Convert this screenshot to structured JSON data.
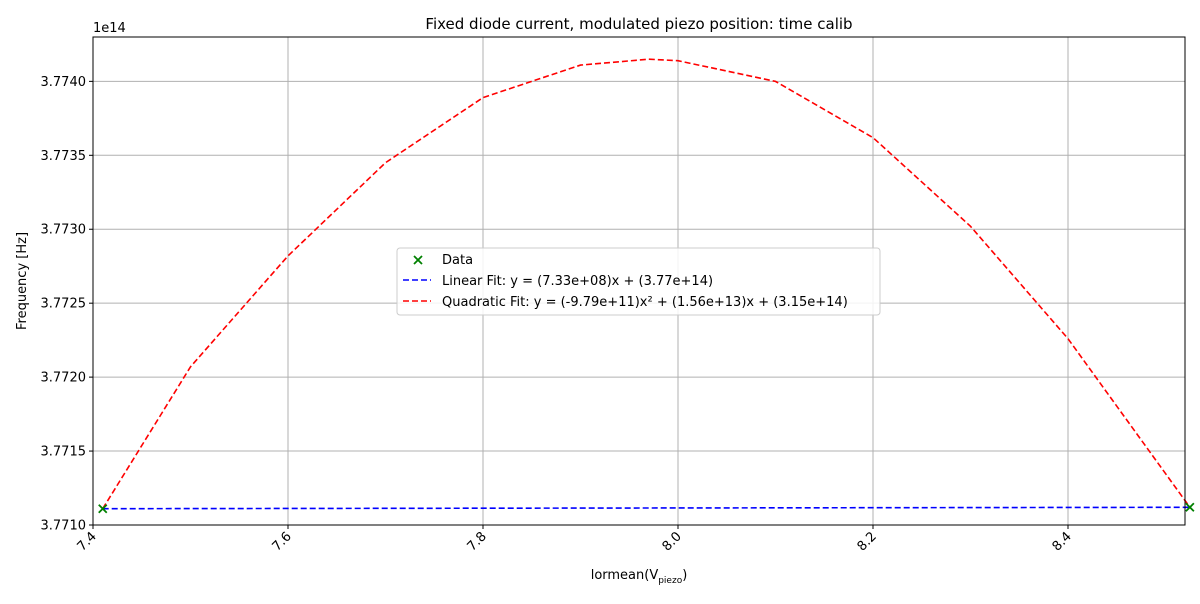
{
  "chart_data": {
    "type": "line",
    "title": "Fixed diode current, modulated piezo position: time calib",
    "xlabel_main": "lormean(V",
    "xlabel_sub": "piezo",
    "xlabel_close": ")",
    "ylabel": "Frequency [Hz]",
    "y_offset_label": "1e14",
    "xlim": [
      7.4,
      8.52
    ],
    "ylim": [
      3.771,
      3.7743
    ],
    "x_ticks": [
      {
        "value": 7.4,
        "label": "7.4"
      },
      {
        "value": 7.6,
        "label": "7.6"
      },
      {
        "value": 7.8,
        "label": "7.8"
      },
      {
        "value": 8.0,
        "label": "8.0"
      },
      {
        "value": 8.2,
        "label": "8.2"
      },
      {
        "value": 8.4,
        "label": "8.4"
      }
    ],
    "y_ticks": [
      {
        "value": 3.771,
        "label": "3.7710"
      },
      {
        "value": 3.7715,
        "label": "3.7715"
      },
      {
        "value": 3.772,
        "label": "3.7720"
      },
      {
        "value": 3.7725,
        "label": "3.7725"
      },
      {
        "value": 3.773,
        "label": "3.7730"
      },
      {
        "value": 3.7735,
        "label": "3.7735"
      },
      {
        "value": 3.774,
        "label": "3.7740"
      }
    ],
    "grid": true,
    "legend_position": "center",
    "scatter": {
      "name": "Data",
      "color": "#008000",
      "marker": "x",
      "points": [
        [
          7.41,
          3.77111
        ],
        [
          8.525,
          3.77112
        ]
      ]
    },
    "series": [
      {
        "name": "Linear Fit: y = (7.33e+08)x + (3.77e+14)",
        "color": "#0000ff",
        "style": "dashed",
        "points": [
          [
            7.41,
            3.77111
          ],
          [
            8.525,
            3.77112
          ]
        ]
      },
      {
        "name": "Quadratic Fit: y = (-9.79e+11)x² + (1.56e+13)x + (3.15e+14)",
        "color": "#ff0000",
        "style": "dashed",
        "points": [
          [
            7.41,
            3.77111
          ],
          [
            7.5,
            3.77207
          ],
          [
            7.6,
            3.77282
          ],
          [
            7.7,
            3.77345
          ],
          [
            7.8,
            3.77389
          ],
          [
            7.9,
            3.77411
          ],
          [
            7.97,
            3.77415
          ],
          [
            8.0,
            3.77414
          ],
          [
            8.1,
            3.774
          ],
          [
            8.2,
            3.77362
          ],
          [
            8.3,
            3.77302
          ],
          [
            8.4,
            3.77226
          ],
          [
            8.525,
            3.77112
          ]
        ]
      }
    ]
  }
}
